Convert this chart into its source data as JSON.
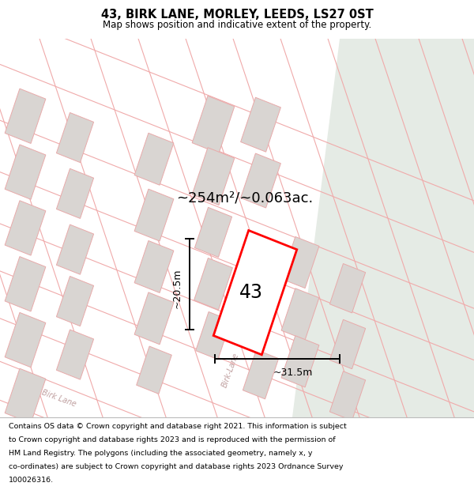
{
  "title": "43, BIRK LANE, MORLEY, LEEDS, LS27 0ST",
  "subtitle": "Map shows position and indicative extent of the property.",
  "footer_lines": [
    "Contains OS data © Crown copyright and database right 2021. This information is subject",
    "to Crown copyright and database rights 2023 and is reproduced with the permission of",
    "HM Land Registry. The polygons (including the associated geometry, namely x, y",
    "co-ordinates) are subject to Crown copyright and database rights 2023 Ordnance Survey",
    "100026316."
  ],
  "area_label": "~254m²/~0.063ac.",
  "width_label": "~31.5m",
  "height_label": "~20.5m",
  "plot_number": "43",
  "map_bg": "#f2eeeb",
  "green_bg": "#e5ebe5",
  "plot_fill": "#ffffff",
  "plot_outline_color": "#ff0000",
  "building_fill": "#d9d5d2",
  "building_outline_color": "#e8aaaa",
  "road_line_color": "#f0aaaa",
  "road_label_color": "#c0a0a0",
  "title_fontsize": 10.5,
  "subtitle_fontsize": 8.5,
  "footer_fontsize": 6.8,
  "area_fontsize": 13,
  "number_fontsize": 17,
  "dim_fontsize": 9,
  "road_label_fontsize": 7
}
